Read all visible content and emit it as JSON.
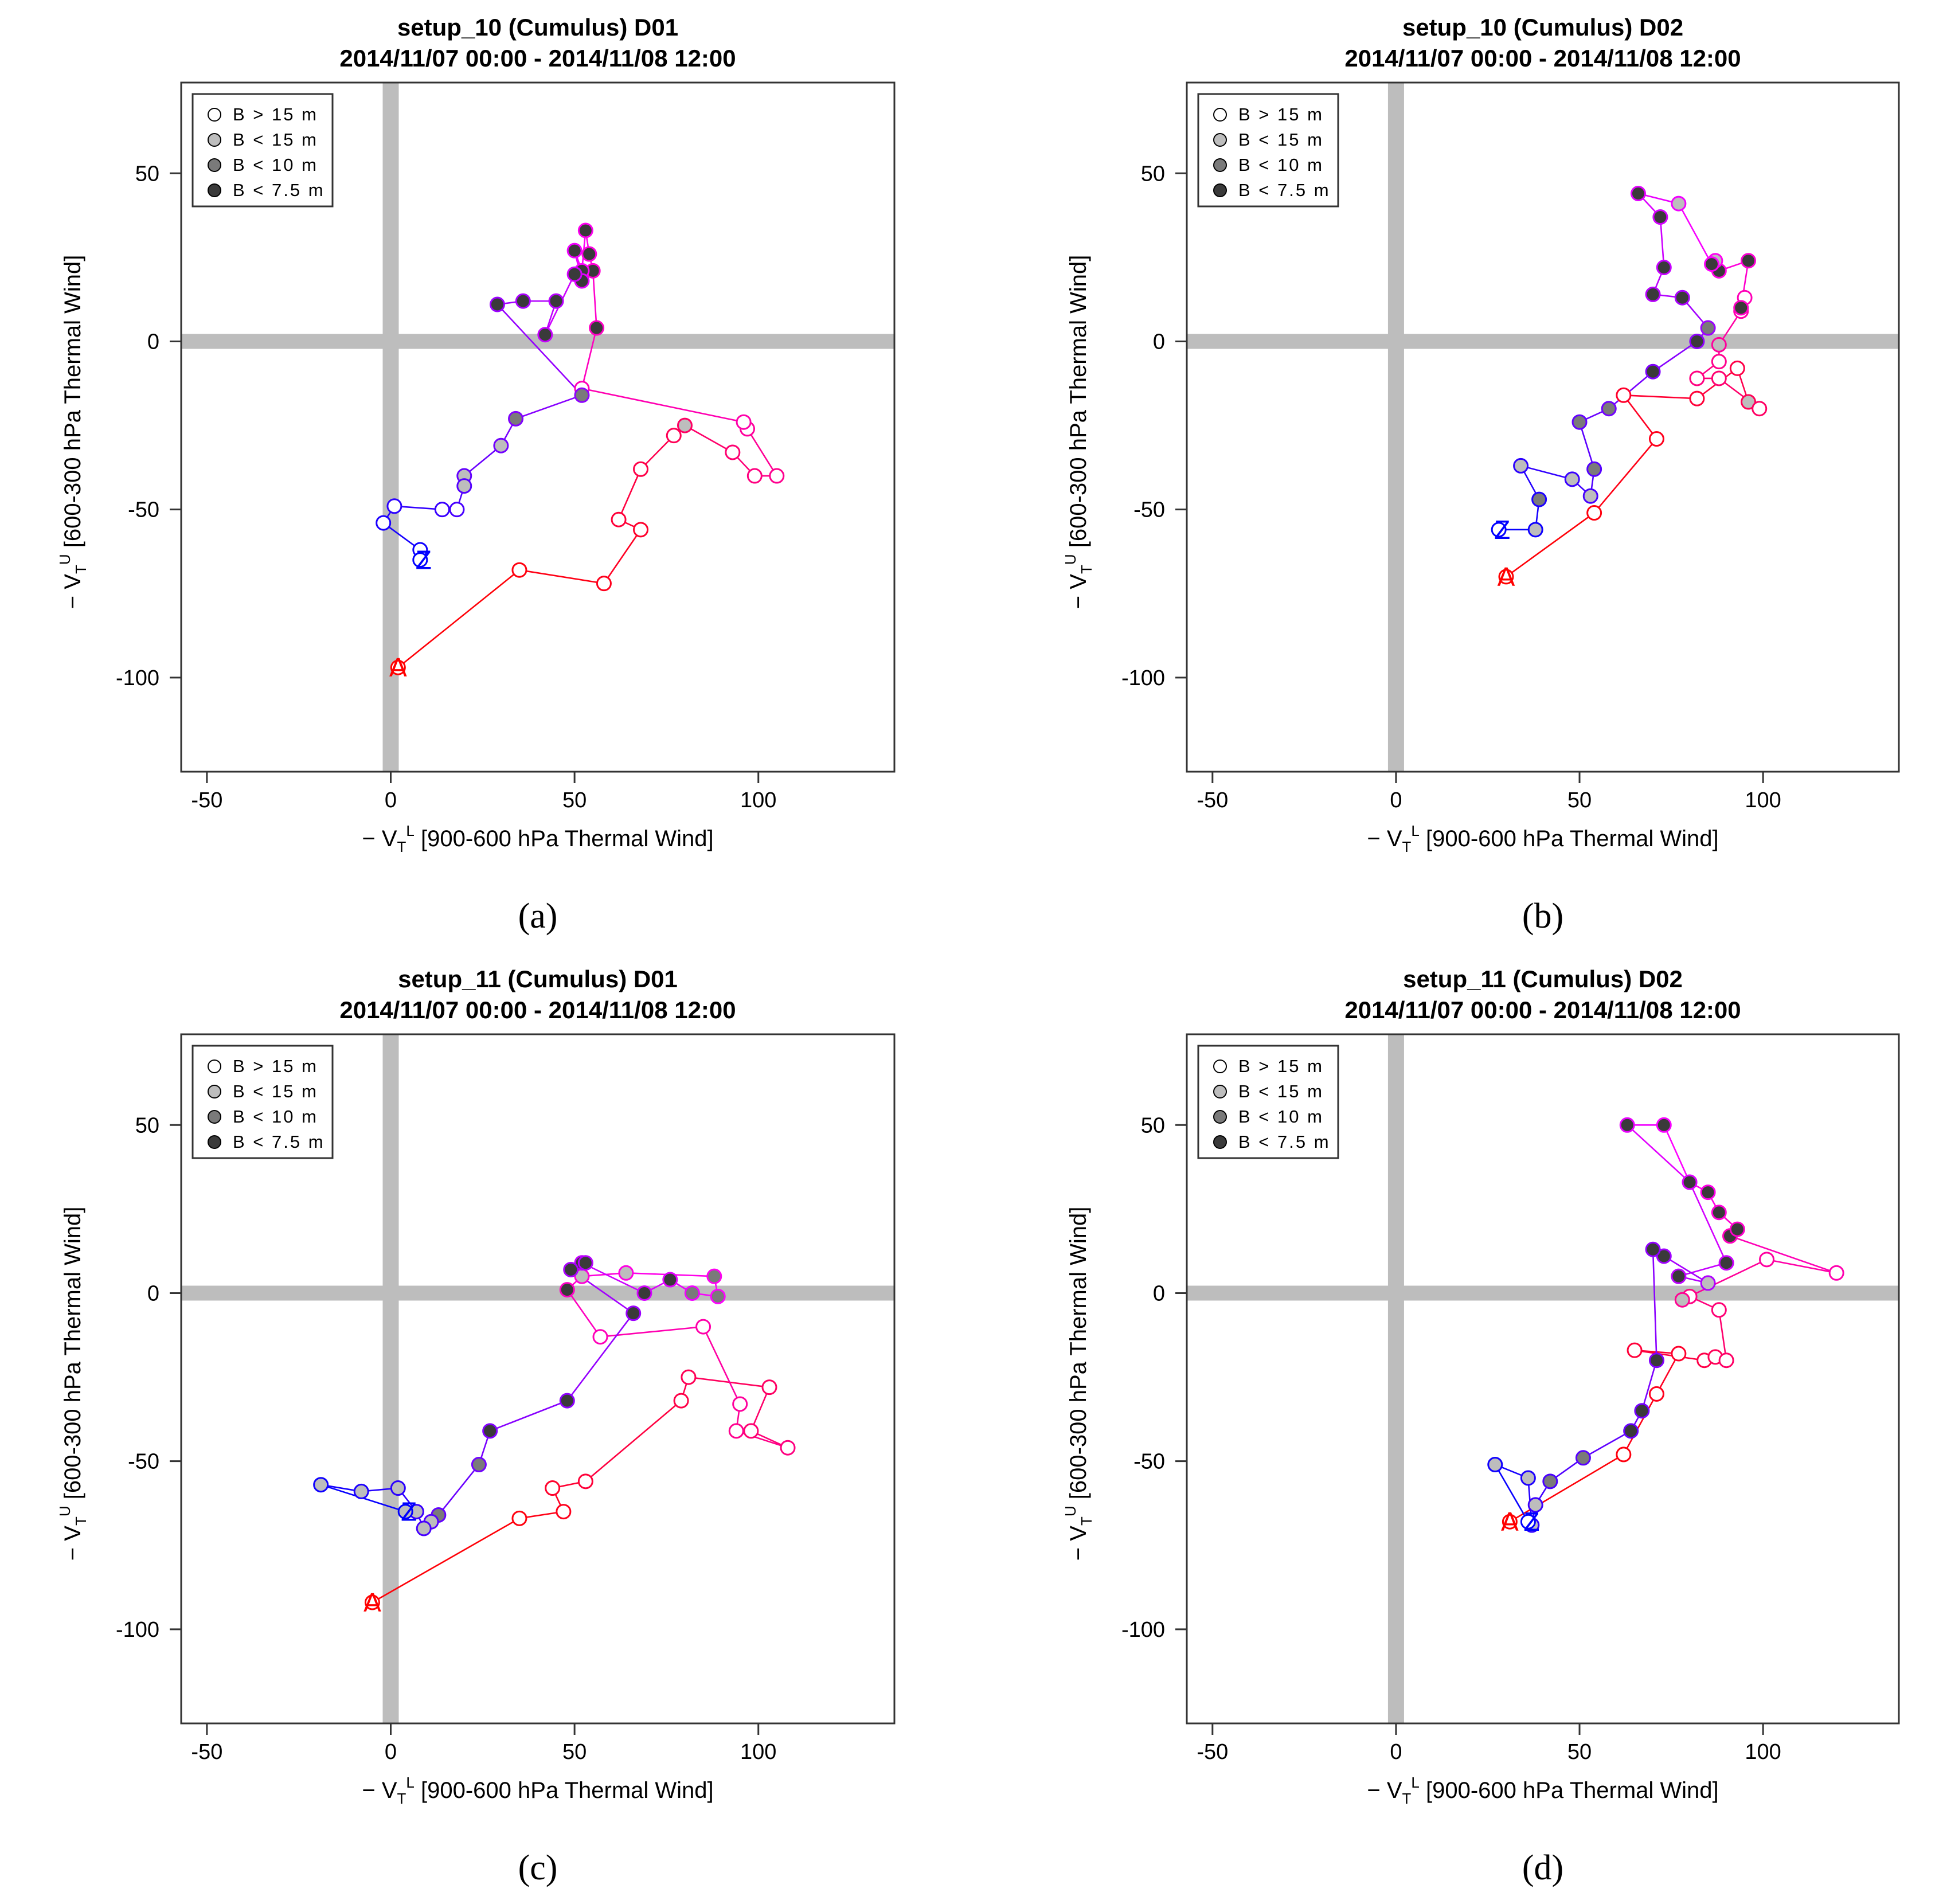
{
  "colors": {
    "start": "#ff0000",
    "end": "#0000ff",
    "mid": "#ff00ff",
    "crosshair": "#bdbdbd",
    "legend_fills": [
      "#ffffff",
      "#bdbdbd",
      "#7a7a7a",
      "#3a3a3a"
    ]
  },
  "axes": {
    "xlabel": "− V_T^L [900-600 hPa Thermal Wind]",
    "xlabel_main": "− V",
    "xlabel_sub": "T",
    "xlabel_sup": "L",
    "xlabel_rest": " [900-600 hPa Thermal Wind]",
    "ylabel": "− V_T^U [600-300 hPa Thermal Wind]",
    "ylabel_main": "− V",
    "ylabel_sub": "T",
    "ylabel_sup": "U",
    "ylabel_rest": " [600-300 hPa Thermal Wind]",
    "xticks": [
      "-50",
      "0",
      "50",
      "100"
    ],
    "yticks": [
      "50",
      "0",
      "-50",
      "-100"
    ]
  },
  "legend": [
    "B > 15 m",
    "B < 15 m",
    "B < 10 m",
    "B < 7.5 m"
  ],
  "endpoint_labels": {
    "start": "A",
    "end": "Z"
  },
  "chart_data": [
    {
      "type": "line",
      "title": "setup_10 (Cumulus)     D01",
      "subtitle": "2014/11/07 00:00 - 2014/11/08 12:00",
      "caption": "(a)",
      "xlim": [
        -57,
        137
      ],
      "ylim": [
        -128,
        77
      ],
      "xticks": [
        -50,
        0,
        50,
        100
      ],
      "yticks": [
        50,
        0,
        -50,
        -100
      ],
      "points": [
        [
          2,
          -97,
          0
        ],
        [
          35,
          -68,
          0
        ],
        [
          58,
          -72,
          0
        ],
        [
          68,
          -56,
          0
        ],
        [
          62,
          -53,
          0
        ],
        [
          68,
          -38,
          0
        ],
        [
          77,
          -28,
          0
        ],
        [
          80,
          -25,
          1
        ],
        [
          93,
          -33,
          0
        ],
        [
          99,
          -40,
          0
        ],
        [
          105,
          -40,
          0
        ],
        [
          97,
          -26,
          0
        ],
        [
          96,
          -24,
          0
        ],
        [
          52,
          -14,
          0
        ],
        [
          56,
          4,
          3
        ],
        [
          55,
          21,
          3
        ],
        [
          54,
          26,
          3
        ],
        [
          53,
          33,
          3
        ],
        [
          52,
          21,
          3
        ],
        [
          50,
          27,
          3
        ],
        [
          52,
          18,
          3
        ],
        [
          50,
          20,
          3
        ],
        [
          42,
          2,
          3
        ],
        [
          45,
          12,
          3
        ],
        [
          36,
          12,
          3
        ],
        [
          29,
          11,
          3
        ],
        [
          52,
          -16,
          2
        ],
        [
          34,
          -23,
          2
        ],
        [
          30,
          -31,
          1
        ],
        [
          20,
          -40,
          1
        ],
        [
          20,
          -43,
          1
        ],
        [
          18,
          -50,
          0
        ],
        [
          14,
          -50,
          0
        ],
        [
          1,
          -49,
          0
        ],
        [
          -2,
          -54,
          0
        ],
        [
          8,
          -62,
          0
        ],
        [
          8,
          -65,
          0
        ]
      ]
    },
    {
      "type": "line",
      "title": "setup_10 (Cumulus)     D02",
      "subtitle": "2014/11/07 00:00 - 2014/11/08 12:00",
      "caption": "(b)",
      "xlim": [
        -57,
        137
      ],
      "ylim": [
        -128,
        77
      ],
      "xticks": [
        -50,
        0,
        50,
        100
      ],
      "yticks": [
        50,
        0,
        -50,
        -100
      ],
      "points": [
        [
          30,
          -70,
          0
        ],
        [
          54,
          -51,
          0
        ],
        [
          71,
          -29,
          0
        ],
        [
          62,
          -16,
          0
        ],
        [
          82,
          -17,
          0
        ],
        [
          93,
          -8,
          0
        ],
        [
          96,
          -18,
          1
        ],
        [
          99,
          -20,
          0
        ],
        [
          88,
          -11,
          0
        ],
        [
          82,
          -11,
          0
        ],
        [
          88,
          -6,
          0
        ],
        [
          88,
          -1,
          1
        ],
        [
          94,
          9,
          0
        ],
        [
          95,
          13,
          0
        ],
        [
          94,
          10,
          3
        ],
        [
          96,
          24,
          3
        ],
        [
          88,
          21,
          3
        ],
        [
          87,
          24,
          1
        ],
        [
          86,
          23,
          3
        ],
        [
          77,
          41,
          1
        ],
        [
          66,
          44,
          3
        ],
        [
          72,
          37,
          3
        ],
        [
          73,
          22,
          3
        ],
        [
          70,
          14,
          3
        ],
        [
          78,
          13,
          3
        ],
        [
          85,
          4,
          2
        ],
        [
          82,
          0,
          3
        ],
        [
          70,
          -9,
          3
        ],
        [
          58,
          -20,
          2
        ],
        [
          50,
          -24,
          2
        ],
        [
          54,
          -38,
          2
        ],
        [
          53,
          -46,
          1
        ],
        [
          48,
          -41,
          1
        ],
        [
          34,
          -37,
          1
        ],
        [
          39,
          -47,
          2
        ],
        [
          38,
          -56,
          1
        ],
        [
          28,
          -56,
          0
        ]
      ]
    },
    {
      "type": "line",
      "title": "setup_11 (Cumulus)     D01",
      "subtitle": "2014/11/07 00:00 - 2014/11/08 12:00",
      "caption": "(c)",
      "xlim": [
        -57,
        137
      ],
      "ylim": [
        -128,
        77
      ],
      "xticks": [
        -50,
        0,
        50,
        100
      ],
      "yticks": [
        50,
        0,
        -50,
        -100
      ],
      "points": [
        [
          -5,
          -92,
          0
        ],
        [
          35,
          -67,
          0
        ],
        [
          47,
          -65,
          0
        ],
        [
          44,
          -58,
          0
        ],
        [
          53,
          -56,
          0
        ],
        [
          79,
          -32,
          0
        ],
        [
          81,
          -25,
          0
        ],
        [
          103,
          -28,
          0
        ],
        [
          98,
          -41,
          0
        ],
        [
          108,
          -46,
          0
        ],
        [
          94,
          -41,
          0
        ],
        [
          95,
          -33,
          0
        ],
        [
          85,
          -10,
          0
        ],
        [
          57,
          -13,
          0
        ],
        [
          48,
          1,
          3
        ],
        [
          52,
          5,
          1
        ],
        [
          64,
          6,
          1
        ],
        [
          88,
          5,
          2
        ],
        [
          89,
          -1,
          2
        ],
        [
          82,
          0,
          2
        ],
        [
          76,
          4,
          3
        ],
        [
          69,
          0,
          3
        ],
        [
          52,
          9,
          3
        ],
        [
          53,
          9,
          3
        ],
        [
          49,
          7,
          3
        ],
        [
          66,
          -6,
          3
        ],
        [
          48,
          -32,
          3
        ],
        [
          27,
          -41,
          3
        ],
        [
          24,
          -51,
          2
        ],
        [
          13,
          -66,
          2
        ],
        [
          11,
          -68,
          1
        ],
        [
          9,
          -70,
          1
        ],
        [
          7,
          -65,
          1
        ],
        [
          2,
          -58,
          1
        ],
        [
          -8,
          -59,
          1
        ],
        [
          -19,
          -57,
          1
        ],
        [
          4,
          -65,
          1
        ]
      ]
    },
    {
      "type": "line",
      "title": "setup_11 (Cumulus)     D02",
      "subtitle": "2014/11/07 00:00 - 2014/11/08 12:00",
      "caption": "(d)",
      "xlim": [
        -57,
        137
      ],
      "ylim": [
        -128,
        77
      ],
      "xticks": [
        -50,
        0,
        50,
        100
      ],
      "yticks": [
        50,
        0,
        -50,
        -100
      ],
      "points": [
        [
          31,
          -68,
          0
        ],
        [
          62,
          -48,
          0
        ],
        [
          71,
          -30,
          0
        ],
        [
          77,
          -18,
          0
        ],
        [
          65,
          -17,
          0
        ],
        [
          84,
          -20,
          0
        ],
        [
          87,
          -19,
          0
        ],
        [
          90,
          -20,
          0
        ],
        [
          88,
          -5,
          0
        ],
        [
          80,
          -1,
          0
        ],
        [
          78,
          -2,
          1
        ],
        [
          101,
          10,
          0
        ],
        [
          120,
          6,
          0
        ],
        [
          91,
          17,
          3
        ],
        [
          93,
          19,
          3
        ],
        [
          88,
          24,
          3
        ],
        [
          85,
          30,
          3
        ],
        [
          80,
          33,
          3
        ],
        [
          73,
          50,
          3
        ],
        [
          63,
          50,
          3
        ],
        [
          80,
          33,
          3
        ],
        [
          90,
          9,
          3
        ],
        [
          77,
          5,
          3
        ],
        [
          85,
          3,
          1
        ],
        [
          73,
          11,
          3
        ],
        [
          70,
          13,
          3
        ],
        [
          71,
          -20,
          3
        ],
        [
          67,
          -35,
          3
        ],
        [
          64,
          -41,
          3
        ],
        [
          51,
          -49,
          2
        ],
        [
          42,
          -56,
          2
        ],
        [
          38,
          -63,
          1
        ],
        [
          37,
          -69,
          1
        ],
        [
          36,
          -55,
          1
        ],
        [
          27,
          -51,
          1
        ],
        [
          36,
          -68,
          0
        ]
      ]
    }
  ]
}
